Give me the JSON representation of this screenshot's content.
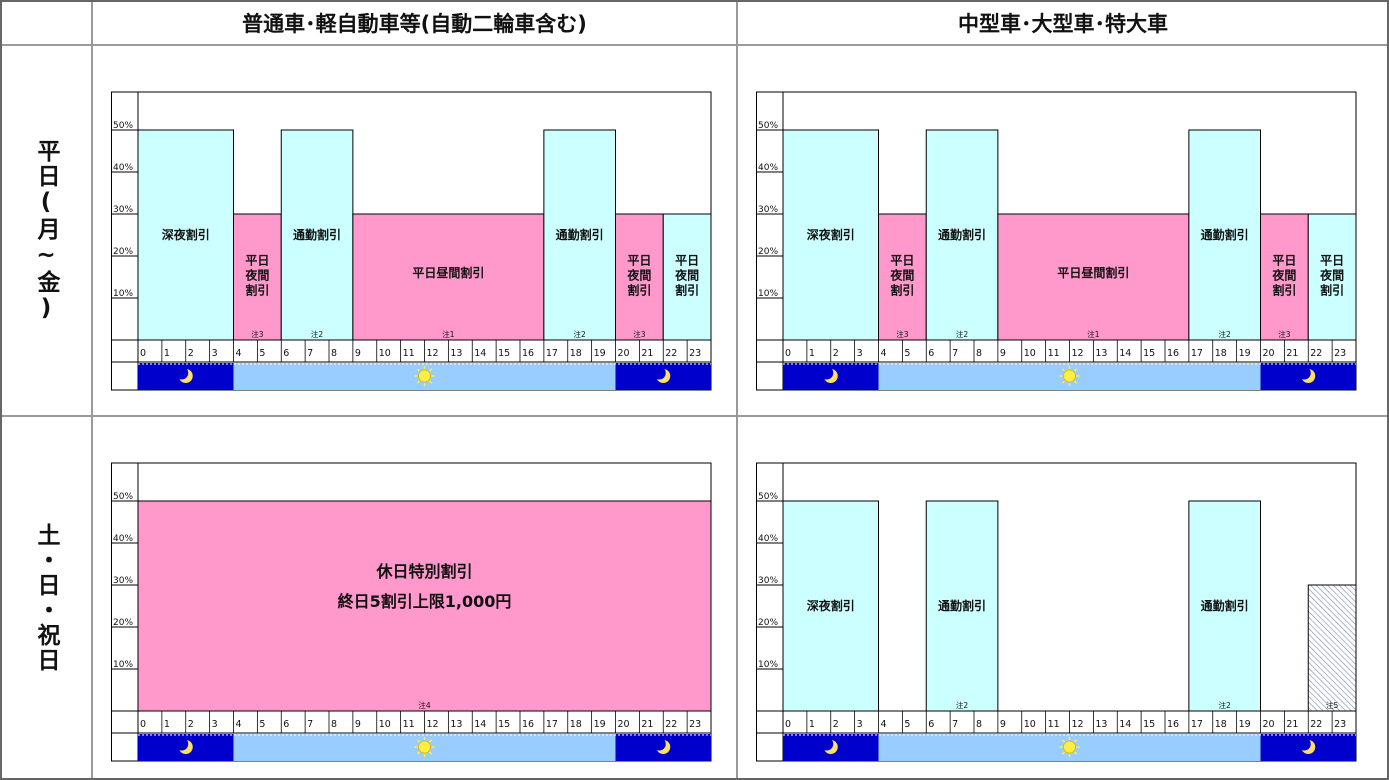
{
  "headers": {
    "col1": "普通車･軽自動車等(自動二輪車含む)",
    "col2": "中型車･大型車･特大車"
  },
  "row_labels": {
    "weekday": "平日(月~金)",
    "holiday": "土・日・祝日"
  },
  "colors": {
    "cyan": "#ccffff",
    "pink": "#ff99cc",
    "night": "#0000cc",
    "day": "#99ccff",
    "moon": "#ffe066",
    "sun": "#ffee44"
  },
  "chart_data": [
    {
      "type": "bar",
      "title": "",
      "panel": "普通車･軽自動車等 / 平日(月~金)",
      "x_ticks": [
        "0",
        "1",
        "2",
        "3",
        "4",
        "5",
        "6",
        "7",
        "8",
        "9",
        "10",
        "11",
        "12",
        "13",
        "14",
        "15",
        "16",
        "17",
        "18",
        "19",
        "20",
        "21",
        "22",
        "23"
      ],
      "y_ticks": [
        "10%",
        "20%",
        "30%",
        "40%",
        "50%"
      ],
      "ylim": [
        0,
        60
      ],
      "segments": [
        {
          "start": 0,
          "end": 4,
          "value": 50,
          "color": "cyan",
          "label": [
            "深夜割引"
          ],
          "note": ""
        },
        {
          "start": 4,
          "end": 6,
          "value": 30,
          "color": "pink",
          "label": [
            "平日",
            "夜間",
            "割引"
          ],
          "note": "注3"
        },
        {
          "start": 6,
          "end": 9,
          "value": 50,
          "color": "cyan",
          "label": [
            "通勤割引"
          ],
          "note": "注2"
        },
        {
          "start": 9,
          "end": 17,
          "value": 30,
          "color": "pink",
          "label": [
            "平日昼間割引"
          ],
          "note": "注1"
        },
        {
          "start": 17,
          "end": 20,
          "value": 50,
          "color": "cyan",
          "label": [
            "通勤割引"
          ],
          "note": "注2"
        },
        {
          "start": 20,
          "end": 22,
          "value": 30,
          "color": "pink",
          "label": [
            "平日",
            "夜間",
            "割引"
          ],
          "note": "注3"
        },
        {
          "start": 22,
          "end": 24,
          "value": 30,
          "color": "cyan",
          "label": [
            "平日",
            "夜間",
            "割引"
          ],
          "note": ""
        }
      ],
      "period_bar": [
        {
          "start": 0,
          "end": 4,
          "kind": "night"
        },
        {
          "start": 4,
          "end": 20,
          "kind": "day"
        },
        {
          "start": 20,
          "end": 24,
          "kind": "night"
        }
      ]
    },
    {
      "type": "bar",
      "title": "",
      "panel": "中型車･大型車･特大車 / 平日(月~金)",
      "x_ticks": [
        "0",
        "1",
        "2",
        "3",
        "4",
        "5",
        "6",
        "7",
        "8",
        "9",
        "10",
        "11",
        "12",
        "13",
        "14",
        "15",
        "16",
        "17",
        "18",
        "19",
        "20",
        "21",
        "22",
        "23"
      ],
      "y_ticks": [
        "10%",
        "20%",
        "30%",
        "40%",
        "50%"
      ],
      "ylim": [
        0,
        60
      ],
      "segments": [
        {
          "start": 0,
          "end": 4,
          "value": 50,
          "color": "cyan",
          "label": [
            "深夜割引"
          ],
          "note": ""
        },
        {
          "start": 4,
          "end": 6,
          "value": 30,
          "color": "pink",
          "label": [
            "平日",
            "夜間",
            "割引"
          ],
          "note": "注3"
        },
        {
          "start": 6,
          "end": 9,
          "value": 50,
          "color": "cyan",
          "label": [
            "通勤割引"
          ],
          "note": "注2"
        },
        {
          "start": 9,
          "end": 17,
          "value": 30,
          "color": "pink",
          "label": [
            "平日昼間割引"
          ],
          "note": "注1"
        },
        {
          "start": 17,
          "end": 20,
          "value": 50,
          "color": "cyan",
          "label": [
            "通勤割引"
          ],
          "note": "注2"
        },
        {
          "start": 20,
          "end": 22,
          "value": 30,
          "color": "pink",
          "label": [
            "平日",
            "夜間",
            "割引"
          ],
          "note": "注3"
        },
        {
          "start": 22,
          "end": 24,
          "value": 30,
          "color": "cyan",
          "label": [
            "平日",
            "夜間",
            "割引"
          ],
          "note": ""
        }
      ],
      "period_bar": [
        {
          "start": 0,
          "end": 4,
          "kind": "night"
        },
        {
          "start": 4,
          "end": 20,
          "kind": "day"
        },
        {
          "start": 20,
          "end": 24,
          "kind": "night"
        }
      ]
    },
    {
      "type": "bar",
      "title": "",
      "panel": "普通車･軽自動車等 / 土・日・祝日",
      "x_ticks": [
        "0",
        "1",
        "2",
        "3",
        "4",
        "5",
        "6",
        "7",
        "8",
        "9",
        "10",
        "11",
        "12",
        "13",
        "14",
        "15",
        "16",
        "17",
        "18",
        "19",
        "20",
        "21",
        "22",
        "23"
      ],
      "y_ticks": [
        "10%",
        "20%",
        "30%",
        "40%",
        "50%"
      ],
      "ylim": [
        0,
        60
      ],
      "segments": [
        {
          "start": 0,
          "end": 24,
          "value": 50,
          "color": "pink",
          "label": [
            "休日特別割引",
            "終日5割引上限1,000円"
          ],
          "note": "注4",
          "big": true
        }
      ],
      "period_bar": [
        {
          "start": 0,
          "end": 4,
          "kind": "night"
        },
        {
          "start": 4,
          "end": 20,
          "kind": "day"
        },
        {
          "start": 20,
          "end": 24,
          "kind": "night"
        }
      ]
    },
    {
      "type": "bar",
      "title": "",
      "panel": "中型車･大型車･特大車 / 土・日・祝日",
      "x_ticks": [
        "0",
        "1",
        "2",
        "3",
        "4",
        "5",
        "6",
        "7",
        "8",
        "9",
        "10",
        "11",
        "12",
        "13",
        "14",
        "15",
        "16",
        "17",
        "18",
        "19",
        "20",
        "21",
        "22",
        "23"
      ],
      "y_ticks": [
        "10%",
        "20%",
        "30%",
        "40%",
        "50%"
      ],
      "ylim": [
        0,
        60
      ],
      "segments": [
        {
          "start": 0,
          "end": 4,
          "value": 50,
          "color": "cyan",
          "label": [
            "深夜割引"
          ],
          "note": ""
        },
        {
          "start": 6,
          "end": 9,
          "value": 50,
          "color": "cyan",
          "label": [
            "通勤割引"
          ],
          "note": "注2"
        },
        {
          "start": 17,
          "end": 20,
          "value": 50,
          "color": "cyan",
          "label": [
            "通勤割引"
          ],
          "note": "注2"
        },
        {
          "start": 22,
          "end": 24,
          "value": 30,
          "color": "hatch",
          "label": [],
          "note": "注5"
        }
      ],
      "period_bar": [
        {
          "start": 0,
          "end": 4,
          "kind": "night"
        },
        {
          "start": 4,
          "end": 20,
          "kind": "day"
        },
        {
          "start": 20,
          "end": 24,
          "kind": "night"
        }
      ]
    }
  ]
}
